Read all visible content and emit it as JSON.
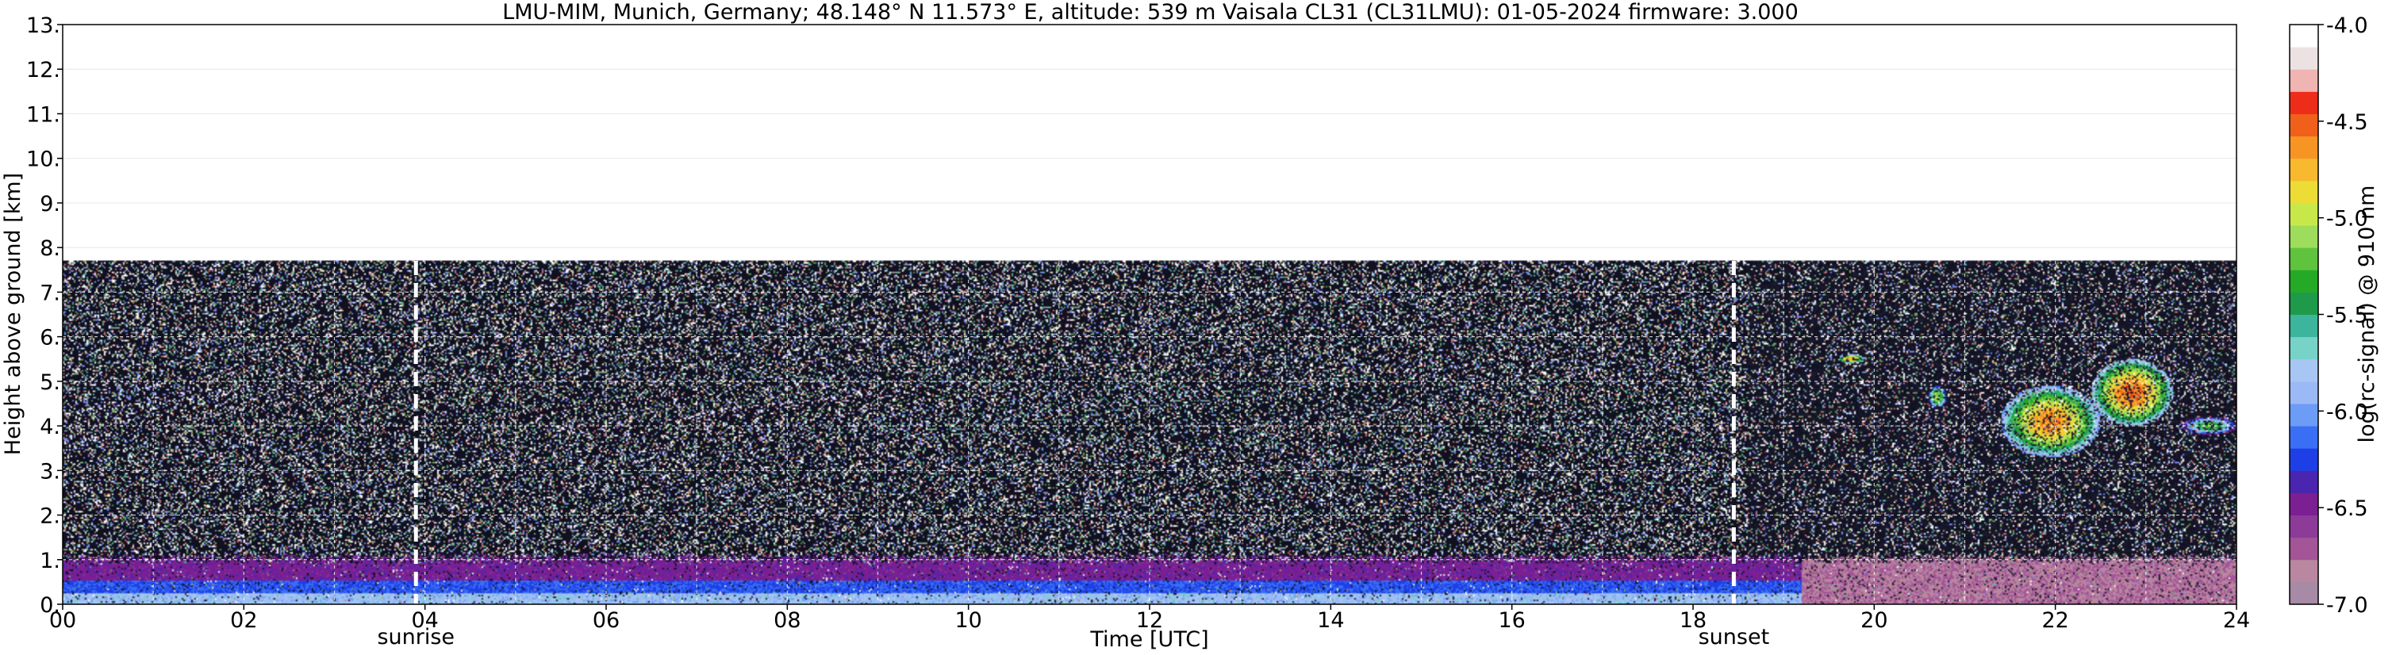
{
  "chart_data": {
    "type": "heatmap",
    "title": "LMU-MIM, Munich, Germany; 48.148° N 11.573° E, altitude: 539 m    Vaisala CL31 (CL31LMU): 01-05-2024    firmware: 3.000",
    "xlabel": "Time [UTC]",
    "ylabel": "Height above ground [km]",
    "xlim": [
      0,
      24
    ],
    "ylim": [
      0,
      13
    ],
    "x_ticks": [
      "00",
      "02",
      "04",
      "06",
      "08",
      "10",
      "12",
      "14",
      "16",
      "18",
      "20",
      "22",
      "24"
    ],
    "y_ticks": [
      "0.",
      "1.",
      "2.",
      "3.",
      "4.",
      "5.",
      "6.",
      "7.",
      "8.",
      "9.",
      "10.",
      "11.",
      "12.",
      "13."
    ],
    "grid": true,
    "data_top_km": 7.7,
    "markers": [
      {
        "label": "sunrise",
        "time_h": 3.9
      },
      {
        "label": "sunset",
        "time_h": 18.45
      }
    ],
    "features": [
      {
        "type": "aerosol_layer",
        "t_start": 0,
        "t_end": 19.2,
        "height_km": [
          0,
          0.9
        ],
        "log_signal": -6.3
      },
      {
        "type": "aerosol_layer",
        "t_start": 19.2,
        "t_end": 24,
        "height_km": [
          0,
          0.9
        ],
        "log_signal": -6.8
      },
      {
        "type": "cloud",
        "t_start": 19.6,
        "t_end": 19.9,
        "height_km": [
          5.4,
          5.6
        ],
        "log_signal": -4.6
      },
      {
        "type": "cloud",
        "t_start": 20.6,
        "t_end": 20.8,
        "height_km": [
          4.4,
          4.9
        ],
        "log_signal": -5.0
      },
      {
        "type": "cloud",
        "t_start": 21.4,
        "t_end": 22.5,
        "height_km": [
          3.3,
          4.9
        ],
        "log_signal": -4.6
      },
      {
        "type": "cloud",
        "t_start": 22.4,
        "t_end": 23.3,
        "height_km": [
          4.0,
          5.5
        ],
        "log_signal": -4.5
      },
      {
        "type": "cloud",
        "t_start": 23.4,
        "t_end": 24.0,
        "height_km": [
          3.8,
          4.2
        ],
        "log_signal": -5.2
      }
    ],
    "colorbar": {
      "label": "log(rc-signal) @ 910 nm",
      "range": [
        -7.0,
        -4.0
      ],
      "ticks": [
        "-4.0",
        "-4.5",
        "-5.0",
        "-5.5",
        "-6.0",
        "-6.5",
        "-7.0"
      ],
      "colors": [
        "#a68aa6",
        "#b9879f",
        "#a35598",
        "#8c3b99",
        "#7b1f92",
        "#4a25b0",
        "#1e3fe6",
        "#3a6ff5",
        "#6c9cf5",
        "#9bb9f6",
        "#a8c6f4",
        "#77d3c8",
        "#3cb59c",
        "#1f9a4a",
        "#25aa27",
        "#5fc33e",
        "#9edd5c",
        "#c8e84a",
        "#ecdc35",
        "#f8b92f",
        "#f69524",
        "#f0601b",
        "#ee2c1a",
        "#f0b4b2",
        "#ece2e2",
        "#ffffff"
      ]
    }
  },
  "colors": {
    "noise": [
      "#111122",
      "#0f0f1d",
      "#1a1a2e",
      "#ffffff",
      "#7c8cff",
      "#5a9a5a",
      "#b0a060",
      "#d07070",
      "#8090c0",
      "#60c0a0"
    ],
    "grid": "#ffffff",
    "frame": "#000000"
  }
}
